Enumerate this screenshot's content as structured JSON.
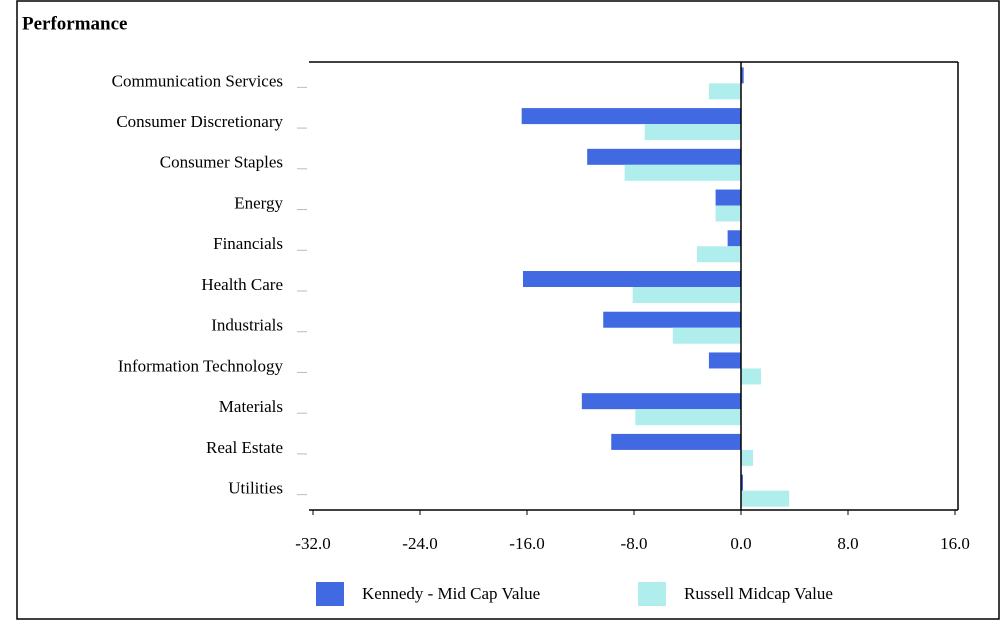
{
  "chart_data": {
    "type": "barh",
    "title": "Performance",
    "categories": [
      "Communication Services",
      "Consumer Discretionary",
      "Consumer Staples",
      "Energy",
      "Financials",
      "Health Care",
      "Industrials",
      "Information Technology",
      "Materials",
      "Real Estate",
      "Utilities"
    ],
    "series": [
      {
        "name": "Kennedy - Mid Cap Value",
        "color": "#4169e1",
        "values": [
          0.2,
          -16.4,
          -11.5,
          -1.9,
          -1.0,
          -16.3,
          -10.3,
          -2.4,
          -11.9,
          -9.7,
          0.15
        ]
      },
      {
        "name": "Russell Midcap Value",
        "color": "#b0eeee",
        "values": [
          -2.4,
          -7.2,
          -8.7,
          -1.9,
          -3.3,
          -8.1,
          -5.1,
          1.5,
          -7.9,
          0.9,
          3.6
        ]
      }
    ],
    "xlim": [
      -32,
      16
    ],
    "xticks": [
      {
        "value": -32,
        "label": "-32.0"
      },
      {
        "value": -24,
        "label": "-24.0"
      },
      {
        "value": -16,
        "label": "-16.0"
      },
      {
        "value": -8,
        "label": "-8.0"
      },
      {
        "value": 0,
        "label": "0.0"
      },
      {
        "value": 8,
        "label": "8.0"
      },
      {
        "value": 16,
        "label": "16.0"
      }
    ],
    "legend": "bottom"
  }
}
